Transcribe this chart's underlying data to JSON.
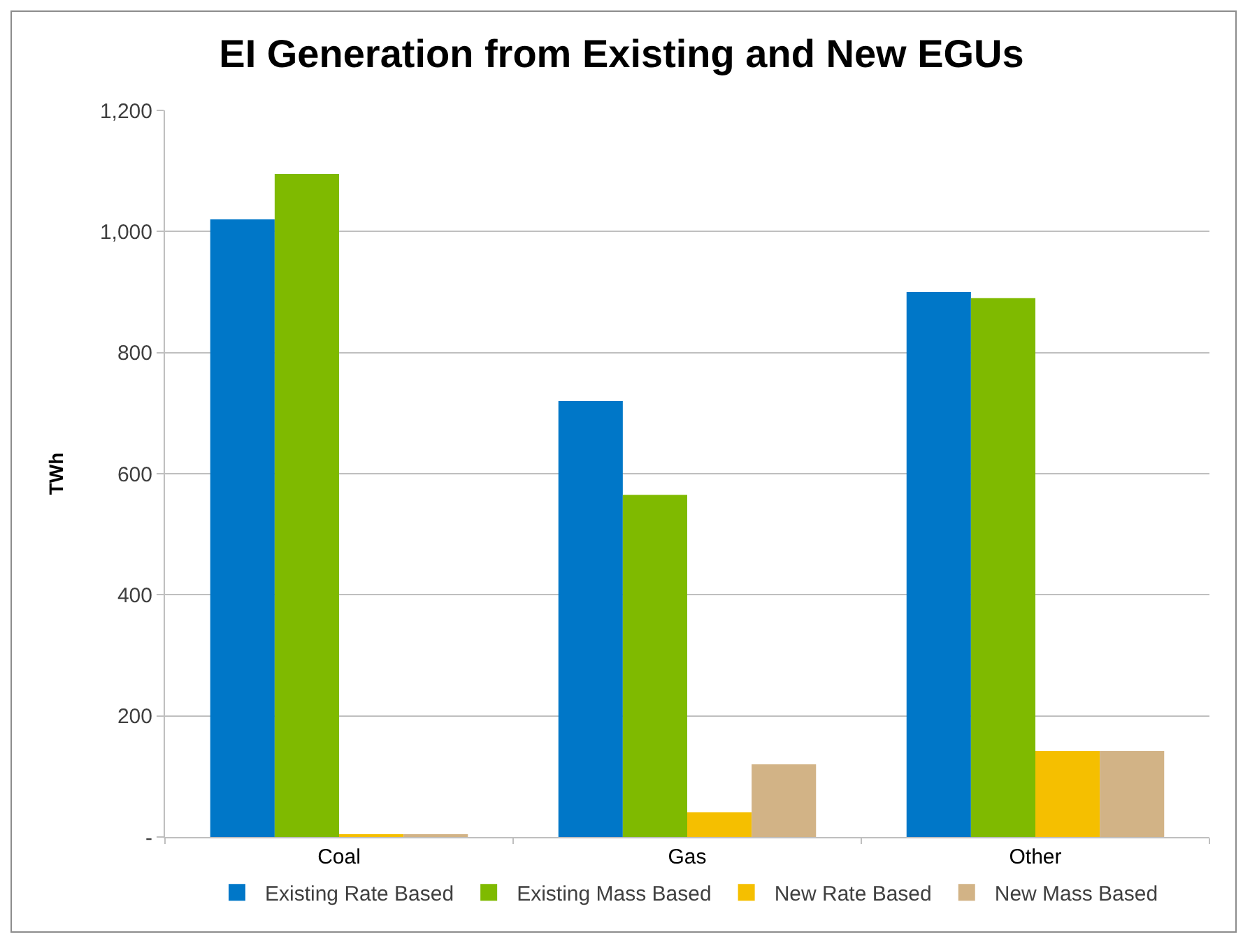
{
  "chart_data": {
    "type": "bar",
    "title": "EI Generation from Existing and New EGUs",
    "ylabel": "TWh",
    "categories": [
      "Coal",
      "Gas",
      "Other"
    ],
    "series": [
      {
        "name": "Existing Rate Based",
        "color": "#0077c8",
        "values": [
          1020,
          720,
          900
        ]
      },
      {
        "name": "Existing Mass Based",
        "color": "#7fba00",
        "values": [
          1095,
          565,
          890
        ]
      },
      {
        "name": "New Rate Based",
        "color": "#f5bf00",
        "values": [
          3,
          41,
          142
        ]
      },
      {
        "name": "New Mass Based",
        "color": "#d2b386",
        "values": [
          3,
          120,
          142
        ]
      }
    ],
    "ylim": [
      0,
      1200
    ],
    "yticks": [
      {
        "value": 0,
        "label": "-"
      },
      200,
      400,
      600,
      800,
      {
        "value": 1000,
        "label": "1,000"
      },
      {
        "value": 1200,
        "label": "1,200"
      }
    ],
    "grid": "y",
    "legend": "bottom"
  }
}
